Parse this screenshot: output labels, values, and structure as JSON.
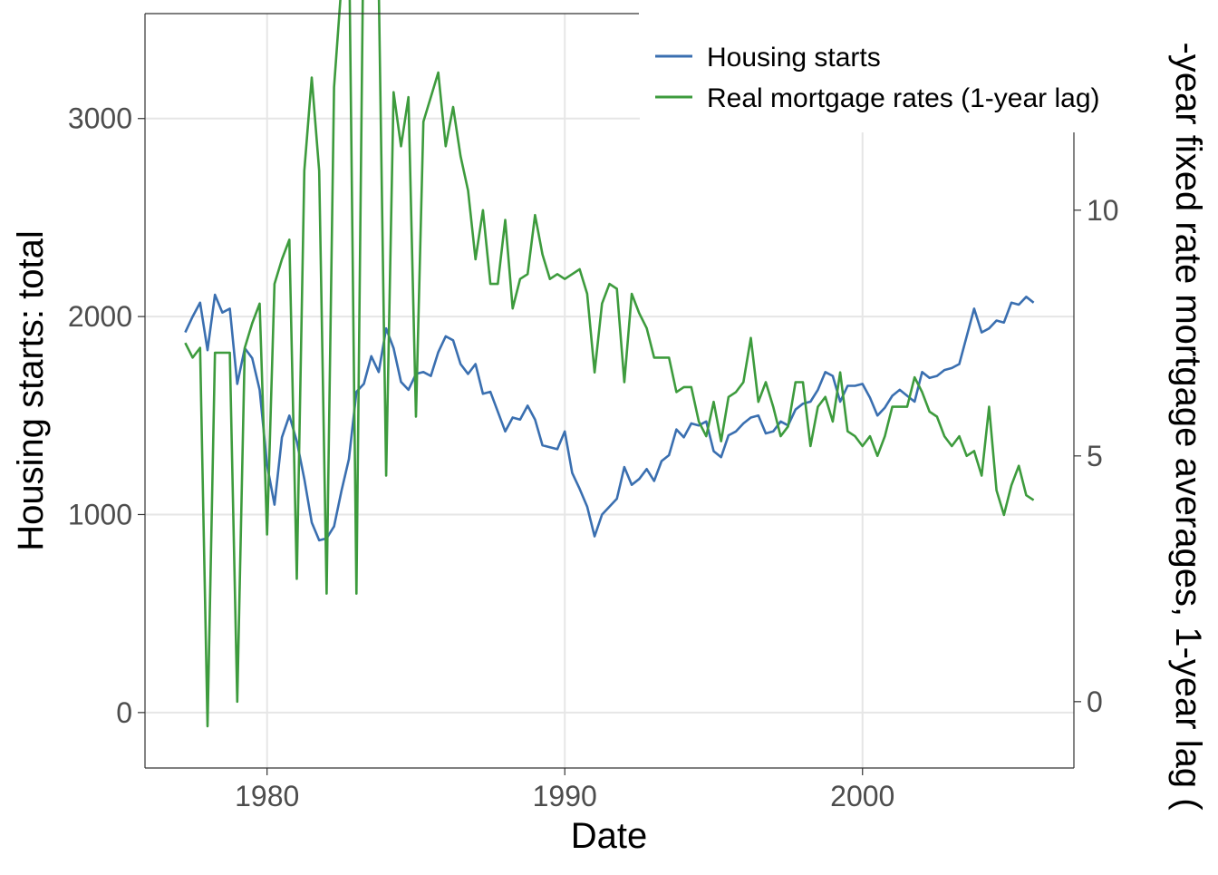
{
  "chart_data": {
    "type": "line",
    "xlabel": "Date",
    "ylabel_left": "Housing starts: total",
    "ylabel_right": "-year fixed rate mortgage averages, 1-year lag (",
    "x_ticks": [
      "1980",
      "1990",
      "2000"
    ],
    "x_tick_values": [
      1980,
      1990,
      2000
    ],
    "y_left_ticks": [
      "0",
      "1000",
      "2000",
      "3000"
    ],
    "y_left_tick_values": [
      0,
      1000,
      2000,
      3000
    ],
    "y_right_ticks": [
      "0",
      "5",
      "10"
    ],
    "y_right_tick_values": [
      0,
      5,
      10
    ],
    "xlim": [
      1975.9,
      2007.1
    ],
    "ylim_left": [
      -280,
      3530
    ],
    "ylim_right": [
      -1.35,
      14.0
    ],
    "grid": true,
    "legend_position": "top-right",
    "colors": {
      "housing": "#3a6fb0",
      "mortgage": "#3d9b3d",
      "grid": "#e6e6e6",
      "axis": "#333333",
      "tick_text": "#4d4d4d"
    },
    "series": [
      {
        "name": "Housing starts",
        "axis": "left",
        "color": "#3a6fb0",
        "points": [
          [
            1977.25,
            1920
          ],
          [
            1977.5,
            2000
          ],
          [
            1977.75,
            2070
          ],
          [
            1978.0,
            1830
          ],
          [
            1978.25,
            2110
          ],
          [
            1978.5,
            2020
          ],
          [
            1978.75,
            2040
          ],
          [
            1979.0,
            1660
          ],
          [
            1979.25,
            1840
          ],
          [
            1979.5,
            1790
          ],
          [
            1979.75,
            1630
          ],
          [
            1980.0,
            1250
          ],
          [
            1980.25,
            1050
          ],
          [
            1980.5,
            1390
          ],
          [
            1980.75,
            1500
          ],
          [
            1981.0,
            1370
          ],
          [
            1981.25,
            1180
          ],
          [
            1981.5,
            960
          ],
          [
            1981.75,
            870
          ],
          [
            1982.0,
            880
          ],
          [
            1982.25,
            940
          ],
          [
            1982.5,
            1120
          ],
          [
            1982.75,
            1280
          ],
          [
            1983.0,
            1620
          ],
          [
            1983.25,
            1660
          ],
          [
            1983.5,
            1800
          ],
          [
            1983.75,
            1720
          ],
          [
            1984.0,
            1940
          ],
          [
            1984.25,
            1840
          ],
          [
            1984.5,
            1670
          ],
          [
            1984.75,
            1630
          ],
          [
            1985.0,
            1710
          ],
          [
            1985.25,
            1720
          ],
          [
            1985.5,
            1700
          ],
          [
            1985.75,
            1820
          ],
          [
            1986.0,
            1900
          ],
          [
            1986.25,
            1880
          ],
          [
            1986.5,
            1760
          ],
          [
            1986.75,
            1710
          ],
          [
            1987.0,
            1760
          ],
          [
            1987.25,
            1610
          ],
          [
            1987.5,
            1620
          ],
          [
            1987.75,
            1520
          ],
          [
            1988.0,
            1420
          ],
          [
            1988.25,
            1490
          ],
          [
            1988.5,
            1480
          ],
          [
            1988.75,
            1550
          ],
          [
            1989.0,
            1480
          ],
          [
            1989.25,
            1350
          ],
          [
            1989.5,
            1340
          ],
          [
            1989.75,
            1330
          ],
          [
            1990.0,
            1420
          ],
          [
            1990.25,
            1210
          ],
          [
            1990.5,
            1130
          ],
          [
            1990.75,
            1040
          ],
          [
            1991.0,
            890
          ],
          [
            1991.25,
            1000
          ],
          [
            1991.5,
            1040
          ],
          [
            1991.75,
            1080
          ],
          [
            1992.0,
            1240
          ],
          [
            1992.25,
            1150
          ],
          [
            1992.5,
            1180
          ],
          [
            1992.75,
            1230
          ],
          [
            1993.0,
            1170
          ],
          [
            1993.25,
            1270
          ],
          [
            1993.5,
            1300
          ],
          [
            1993.75,
            1430
          ],
          [
            1994.0,
            1390
          ],
          [
            1994.25,
            1460
          ],
          [
            1994.5,
            1450
          ],
          [
            1994.75,
            1470
          ],
          [
            1995.0,
            1320
          ],
          [
            1995.25,
            1290
          ],
          [
            1995.5,
            1400
          ],
          [
            1995.75,
            1420
          ],
          [
            1996.0,
            1460
          ],
          [
            1996.25,
            1490
          ],
          [
            1996.5,
            1500
          ],
          [
            1996.75,
            1410
          ],
          [
            1997.0,
            1420
          ],
          [
            1997.25,
            1470
          ],
          [
            1997.5,
            1450
          ],
          [
            1997.75,
            1530
          ],
          [
            1998.0,
            1560
          ],
          [
            1998.25,
            1570
          ],
          [
            1998.5,
            1630
          ],
          [
            1998.75,
            1720
          ],
          [
            1999.0,
            1700
          ],
          [
            1999.25,
            1570
          ],
          [
            1999.5,
            1650
          ],
          [
            1999.75,
            1650
          ],
          [
            2000.0,
            1660
          ],
          [
            2000.25,
            1590
          ],
          [
            2000.5,
            1500
          ],
          [
            2000.75,
            1540
          ],
          [
            2001.0,
            1600
          ],
          [
            2001.25,
            1630
          ],
          [
            2001.5,
            1600
          ],
          [
            2001.75,
            1570
          ],
          [
            2002.0,
            1720
          ],
          [
            2002.25,
            1690
          ],
          [
            2002.5,
            1700
          ],
          [
            2002.75,
            1730
          ],
          [
            2003.0,
            1740
          ],
          [
            2003.25,
            1760
          ],
          [
            2003.5,
            1900
          ],
          [
            2003.75,
            2040
          ],
          [
            2004.0,
            1920
          ],
          [
            2004.25,
            1940
          ],
          [
            2004.5,
            1980
          ],
          [
            2004.75,
            1970
          ],
          [
            2005.0,
            2070
          ],
          [
            2005.25,
            2060
          ],
          [
            2005.5,
            2100
          ],
          [
            2005.75,
            2070
          ]
        ]
      },
      {
        "name": "Real mortgage rates (1-year lag)",
        "axis": "right",
        "color": "#3d9b3d",
        "points": [
          [
            1977.25,
            7.3
          ],
          [
            1977.5,
            7.0
          ],
          [
            1977.75,
            7.2
          ],
          [
            1978.0,
            -0.5
          ],
          [
            1978.25,
            7.1
          ],
          [
            1978.5,
            7.1
          ],
          [
            1978.75,
            7.1
          ],
          [
            1979.0,
            0.0
          ],
          [
            1979.25,
            7.2
          ],
          [
            1979.5,
            7.7
          ],
          [
            1979.75,
            8.1
          ],
          [
            1980.0,
            3.4
          ],
          [
            1980.25,
            8.5
          ],
          [
            1980.5,
            9.0
          ],
          [
            1980.75,
            9.4
          ],
          [
            1981.0,
            2.5
          ],
          [
            1981.25,
            10.8
          ],
          [
            1981.5,
            12.7
          ],
          [
            1981.75,
            10.8
          ],
          [
            1982.0,
            2.2
          ],
          [
            1982.25,
            12.5
          ],
          [
            1982.5,
            14.6
          ],
          [
            1982.75,
            15.8
          ],
          [
            1983.0,
            2.2
          ],
          [
            1983.25,
            16.4
          ],
          [
            1983.5,
            15.6
          ],
          [
            1983.75,
            14.6
          ],
          [
            1984.0,
            4.6
          ],
          [
            1984.25,
            12.4
          ],
          [
            1984.5,
            11.3
          ],
          [
            1984.75,
            12.3
          ],
          [
            1985.0,
            5.8
          ],
          [
            1985.25,
            11.8
          ],
          [
            1985.5,
            12.3
          ],
          [
            1985.75,
            12.8
          ],
          [
            1986.0,
            11.3
          ],
          [
            1986.25,
            12.1
          ],
          [
            1986.5,
            11.1
          ],
          [
            1986.75,
            10.4
          ],
          [
            1987.0,
            9.0
          ],
          [
            1987.25,
            10.0
          ],
          [
            1987.5,
            8.5
          ],
          [
            1987.75,
            8.5
          ],
          [
            1988.0,
            9.8
          ],
          [
            1988.25,
            8.0
          ],
          [
            1988.5,
            8.6
          ],
          [
            1988.75,
            8.7
          ],
          [
            1989.0,
            9.9
          ],
          [
            1989.25,
            9.1
          ],
          [
            1989.5,
            8.6
          ],
          [
            1989.75,
            8.7
          ],
          [
            1990.0,
            8.6
          ],
          [
            1990.25,
            8.7
          ],
          [
            1990.5,
            8.8
          ],
          [
            1990.75,
            8.3
          ],
          [
            1991.0,
            6.7
          ],
          [
            1991.25,
            8.1
          ],
          [
            1991.5,
            8.5
          ],
          [
            1991.75,
            8.4
          ],
          [
            1992.0,
            6.5
          ],
          [
            1992.25,
            8.3
          ],
          [
            1992.5,
            7.9
          ],
          [
            1992.75,
            7.6
          ],
          [
            1993.0,
            7.0
          ],
          [
            1993.25,
            7.0
          ],
          [
            1993.5,
            7.0
          ],
          [
            1993.75,
            6.3
          ],
          [
            1994.0,
            6.4
          ],
          [
            1994.25,
            6.4
          ],
          [
            1994.5,
            5.7
          ],
          [
            1994.75,
            5.4
          ],
          [
            1995.0,
            6.1
          ],
          [
            1995.25,
            5.3
          ],
          [
            1995.5,
            6.2
          ],
          [
            1995.75,
            6.3
          ],
          [
            1996.0,
            6.5
          ],
          [
            1996.25,
            7.4
          ],
          [
            1996.5,
            6.1
          ],
          [
            1996.75,
            6.5
          ],
          [
            1997.0,
            6.0
          ],
          [
            1997.25,
            5.4
          ],
          [
            1997.5,
            5.6
          ],
          [
            1997.75,
            6.5
          ],
          [
            1998.0,
            6.5
          ],
          [
            1998.25,
            5.2
          ],
          [
            1998.5,
            6.0
          ],
          [
            1998.75,
            6.2
          ],
          [
            1999.0,
            5.7
          ],
          [
            1999.25,
            6.7
          ],
          [
            1999.5,
            5.5
          ],
          [
            1999.75,
            5.4
          ],
          [
            2000.0,
            5.2
          ],
          [
            2000.25,
            5.4
          ],
          [
            2000.5,
            5.0
          ],
          [
            2000.75,
            5.4
          ],
          [
            2001.0,
            6.0
          ],
          [
            2001.25,
            6.0
          ],
          [
            2001.5,
            6.0
          ],
          [
            2001.75,
            6.6
          ],
          [
            2002.0,
            6.3
          ],
          [
            2002.25,
            5.9
          ],
          [
            2002.5,
            5.8
          ],
          [
            2002.75,
            5.4
          ],
          [
            2003.0,
            5.2
          ],
          [
            2003.25,
            5.4
          ],
          [
            2003.5,
            5.0
          ],
          [
            2003.75,
            5.1
          ],
          [
            2004.0,
            4.6
          ],
          [
            2004.25,
            6.0
          ],
          [
            2004.5,
            4.3
          ],
          [
            2004.75,
            3.8
          ],
          [
            2005.0,
            4.4
          ],
          [
            2005.25,
            4.8
          ],
          [
            2005.5,
            4.2
          ],
          [
            2005.75,
            4.1
          ]
        ]
      }
    ]
  }
}
